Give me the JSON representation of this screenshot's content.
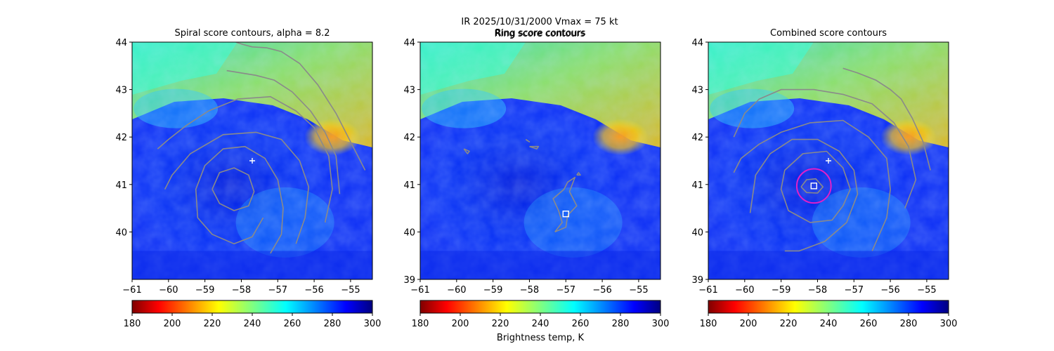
{
  "suptitle": {
    "line1": "IR  2025/10/31/2000    Vmax = 75 kt",
    "line2": "Ring score contours"
  },
  "colors": {
    "contour": "#8a8a8a",
    "ring": "#e020c8",
    "marker": "#ffffff"
  },
  "colorbar": {
    "min": 180,
    "max": 300,
    "ticks": [
      "180",
      "200",
      "220",
      "240",
      "260",
      "280",
      "300"
    ],
    "label": "Brightness temp, K",
    "colormap": "jet_r"
  },
  "chart_data": [
    {
      "type": "heatmap",
      "title": "Spiral score contours, alpha =  8.2",
      "xlim": [
        -61,
        -54.4
      ],
      "ylim": [
        39,
        44
      ],
      "xticks": [
        "−61",
        "−60",
        "−59",
        "−58",
        "−57",
        "−56",
        "−55"
      ],
      "yticks": [
        "40",
        "41",
        "42",
        "43",
        "44"
      ],
      "plus_marker": {
        "lon": -57.7,
        "lat": 41.5
      },
      "contours": [
        [
          [
            -58.8,
            40.9
          ],
          [
            -58.6,
            41.25
          ],
          [
            -58.2,
            41.35
          ],
          [
            -57.8,
            41.2
          ],
          [
            -57.65,
            40.85
          ],
          [
            -57.8,
            40.55
          ],
          [
            -58.2,
            40.45
          ],
          [
            -58.6,
            40.6
          ],
          [
            -58.8,
            40.9
          ]
        ],
        [
          [
            -57.2,
            39.55
          ],
          [
            -56.9,
            39.95
          ],
          [
            -56.85,
            40.5
          ],
          [
            -57.0,
            41.1
          ],
          [
            -57.35,
            41.55
          ],
          [
            -57.9,
            41.8
          ],
          [
            -58.5,
            41.75
          ],
          [
            -59.0,
            41.4
          ],
          [
            -59.25,
            40.9
          ],
          [
            -59.2,
            40.3
          ],
          [
            -58.8,
            39.95
          ],
          [
            -58.2,
            39.75
          ],
          [
            -57.7,
            39.9
          ],
          [
            -57.4,
            40.3
          ]
        ],
        [
          [
            -56.5,
            39.75
          ],
          [
            -56.25,
            40.3
          ],
          [
            -56.15,
            40.95
          ],
          [
            -56.4,
            41.5
          ],
          [
            -56.9,
            41.95
          ],
          [
            -57.6,
            42.1
          ],
          [
            -58.5,
            42.05
          ],
          [
            -59.4,
            41.65
          ],
          [
            -59.9,
            41.2
          ],
          [
            -60.1,
            40.9
          ]
        ],
        [
          [
            -55.7,
            40.2
          ],
          [
            -55.5,
            40.9
          ],
          [
            -55.6,
            41.6
          ],
          [
            -56.0,
            42.2
          ],
          [
            -56.5,
            42.55
          ],
          [
            -57.2,
            42.85
          ],
          [
            -58.1,
            42.8
          ],
          [
            -58.9,
            42.55
          ],
          [
            -59.5,
            42.25
          ],
          [
            -60.0,
            41.95
          ],
          [
            -60.3,
            41.75
          ]
        ],
        [
          [
            -55.3,
            40.8
          ],
          [
            -55.4,
            41.6
          ],
          [
            -55.7,
            42.1
          ],
          [
            -56.1,
            42.55
          ],
          [
            -56.6,
            42.95
          ],
          [
            -57.1,
            43.2
          ],
          [
            -57.6,
            43.3
          ],
          [
            -58.4,
            43.4
          ]
        ],
        [
          [
            -54.6,
            41.3
          ],
          [
            -55.0,
            41.9
          ],
          [
            -55.4,
            42.5
          ],
          [
            -55.9,
            43.1
          ],
          [
            -56.4,
            43.55
          ],
          [
            -56.9,
            43.8
          ],
          [
            -57.3,
            43.88
          ],
          [
            -57.7,
            43.9
          ],
          [
            -57.95,
            43.95
          ],
          [
            -58.15,
            44.0
          ]
        ]
      ]
    },
    {
      "type": "heatmap",
      "title": "Ring score contours",
      "xlim": [
        -61,
        -54.4
      ],
      "ylim": [
        39,
        44
      ],
      "xticks": [
        "−61",
        "−60",
        "−59",
        "−58",
        "−57",
        "−56",
        "−55"
      ],
      "yticks": [
        "39",
        "40",
        "41",
        "42",
        "43",
        "44"
      ],
      "square_marker": {
        "lon": -57.0,
        "lat": 40.38
      },
      "contours": [
        [
          [
            -57.3,
            40.0
          ],
          [
            -57.1,
            40.2
          ],
          [
            -57.2,
            40.45
          ],
          [
            -57.35,
            40.7
          ],
          [
            -57.05,
            40.9
          ],
          [
            -56.95,
            41.05
          ],
          [
            -56.75,
            41.15
          ],
          [
            -56.9,
            40.85
          ],
          [
            -56.7,
            40.55
          ],
          [
            -56.95,
            40.35
          ],
          [
            -57.0,
            40.1
          ],
          [
            -57.3,
            40.0
          ]
        ],
        [
          [
            -59.8,
            41.75
          ],
          [
            -59.65,
            41.7
          ],
          [
            -59.7,
            41.65
          ],
          [
            -59.8,
            41.75
          ]
        ],
        [
          [
            -58.0,
            41.8
          ],
          [
            -57.75,
            41.8
          ],
          [
            -57.8,
            41.75
          ],
          [
            -58.0,
            41.8
          ]
        ],
        [
          [
            -56.7,
            41.2
          ],
          [
            -56.65,
            41.25
          ],
          [
            -56.6,
            41.2
          ],
          [
            -56.7,
            41.2
          ]
        ],
        [
          [
            -58.1,
            41.95
          ],
          [
            -58.0,
            41.9
          ],
          [
            -58.05,
            41.92
          ],
          [
            -58.1,
            41.95
          ]
        ]
      ]
    },
    {
      "type": "heatmap",
      "title": "Combined score contours",
      "xlim": [
        -61,
        -54.4
      ],
      "ylim": [
        39,
        44
      ],
      "xticks": [
        "−61",
        "−60",
        "−59",
        "−58",
        "−57",
        "−56",
        "−55"
      ],
      "yticks": [
        "39",
        "40",
        "41",
        "42",
        "43",
        "44"
      ],
      "plus_marker": {
        "lon": -57.7,
        "lat": 41.5
      },
      "square_marker": {
        "lon": -58.1,
        "lat": 40.97
      },
      "ring": {
        "lon": -58.1,
        "lat": 40.97,
        "radius_deg": 0.47
      },
      "contours": [
        [
          [
            -58.45,
            40.95
          ],
          [
            -58.3,
            41.1
          ],
          [
            -58.05,
            41.12
          ],
          [
            -57.85,
            40.95
          ],
          [
            -58.0,
            40.82
          ],
          [
            -58.3,
            40.83
          ],
          [
            -58.45,
            40.95
          ]
        ],
        [
          [
            -57.1,
            40.9
          ],
          [
            -57.3,
            41.35
          ],
          [
            -57.75,
            41.7
          ],
          [
            -58.4,
            41.65
          ],
          [
            -58.9,
            41.3
          ],
          [
            -59.0,
            40.9
          ],
          [
            -58.8,
            40.45
          ],
          [
            -58.2,
            40.2
          ],
          [
            -57.6,
            40.25
          ],
          [
            -57.3,
            40.55
          ],
          [
            -57.1,
            40.9
          ]
        ],
        [
          [
            -58.9,
            39.6
          ],
          [
            -58.5,
            39.6
          ],
          [
            -57.8,
            39.8
          ],
          [
            -57.2,
            40.2
          ],
          [
            -56.9,
            40.8
          ],
          [
            -57.0,
            41.3
          ],
          [
            -57.4,
            41.7
          ],
          [
            -58.0,
            41.95
          ],
          [
            -58.7,
            41.95
          ],
          [
            -59.3,
            41.65
          ],
          [
            -59.7,
            41.2
          ],
          [
            -59.85,
            40.4
          ]
        ],
        [
          [
            -56.5,
            39.6
          ],
          [
            -56.1,
            40.3
          ],
          [
            -56.0,
            40.9
          ],
          [
            -56.1,
            41.55
          ],
          [
            -56.6,
            42.0
          ],
          [
            -57.3,
            42.35
          ],
          [
            -58.2,
            42.3
          ],
          [
            -59.0,
            42.1
          ],
          [
            -59.6,
            41.85
          ],
          [
            -60.1,
            41.55
          ],
          [
            -60.3,
            41.25
          ]
        ],
        [
          [
            -55.6,
            40.5
          ],
          [
            -55.3,
            41.1
          ],
          [
            -55.5,
            41.8
          ],
          [
            -55.9,
            42.3
          ],
          [
            -56.5,
            42.7
          ],
          [
            -57.3,
            42.9
          ],
          [
            -58.1,
            43.0
          ],
          [
            -59.0,
            43.0
          ],
          [
            -59.6,
            42.8
          ],
          [
            -60.0,
            42.5
          ],
          [
            -60.3,
            42.0
          ]
        ],
        [
          [
            -54.9,
            41.3
          ],
          [
            -55.1,
            41.9
          ],
          [
            -55.4,
            42.4
          ],
          [
            -55.7,
            42.8
          ],
          [
            -56.0,
            43.0
          ],
          [
            -56.4,
            43.2
          ],
          [
            -56.9,
            43.35
          ],
          [
            -57.3,
            43.45
          ]
        ]
      ]
    }
  ]
}
